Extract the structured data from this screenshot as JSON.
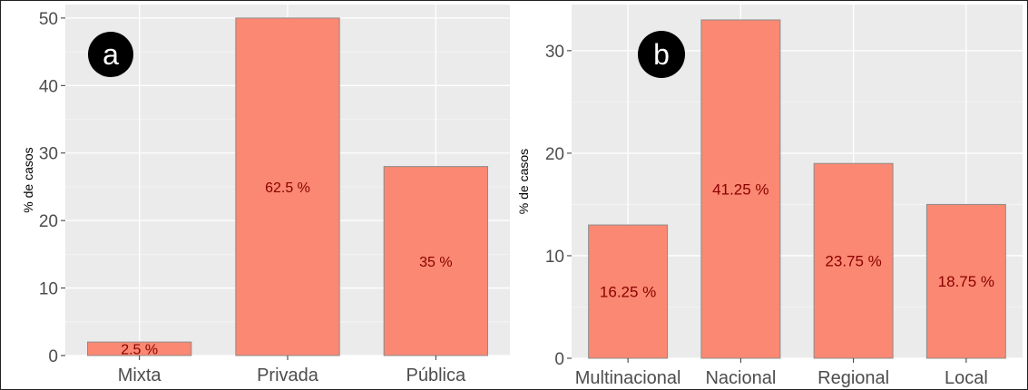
{
  "chart_data": [
    {
      "type": "bar",
      "panel_label": "a",
      "ylabel": "% de casos",
      "categories": [
        "Mixta",
        "Privada",
        "Pública"
      ],
      "values": [
        2,
        50,
        28
      ],
      "data_labels": [
        "2.5 %",
        "62.5 %",
        "35 %"
      ],
      "ylim": [
        0,
        52
      ],
      "yticks": [
        0,
        10,
        20,
        30,
        40,
        50
      ],
      "grid": true,
      "bar_color": "#FA8872",
      "label_color": "#8B0000",
      "background": "#EBEBEB"
    },
    {
      "type": "bar",
      "panel_label": "b",
      "ylabel": "% de casos",
      "categories": [
        "Multinacional",
        "Nacional",
        "Regional",
        "Local"
      ],
      "values": [
        13,
        33,
        19,
        15
      ],
      "data_labels": [
        "16.25 %",
        "41.25 %",
        "23.75 %",
        "18.75 %"
      ],
      "ylim": [
        0,
        34.5
      ],
      "yticks": [
        0,
        10,
        20,
        30
      ],
      "grid": true,
      "bar_color": "#FA8872",
      "label_color": "#8B0000",
      "background": "#EBEBEB"
    }
  ]
}
